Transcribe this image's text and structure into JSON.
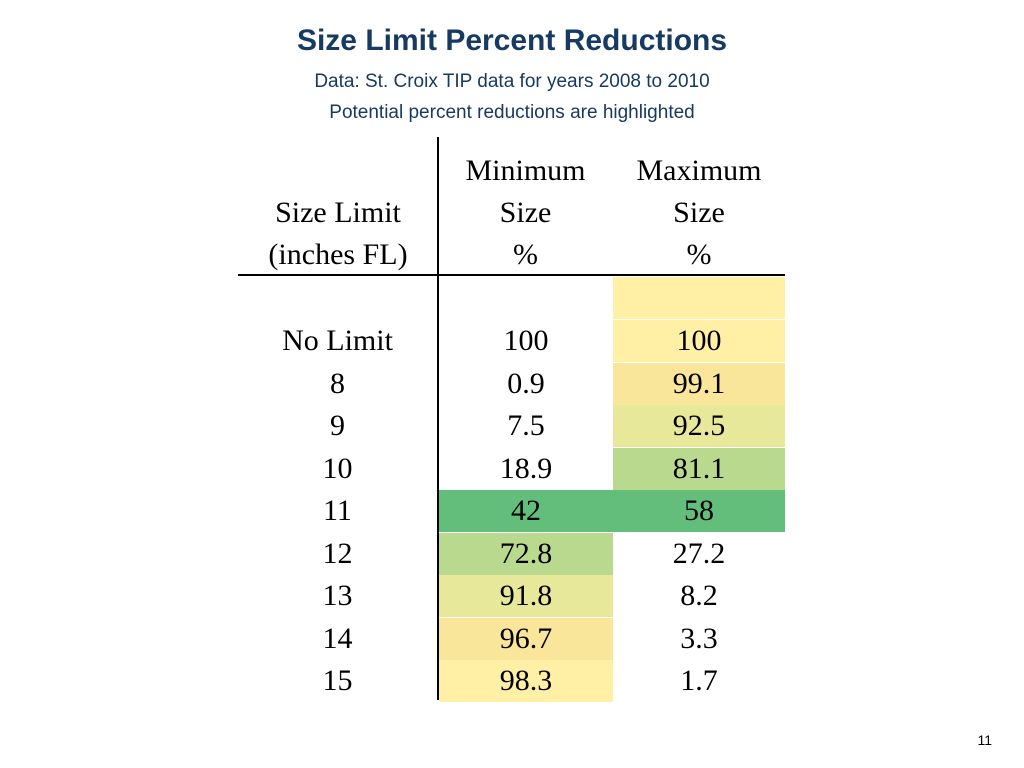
{
  "title": "Size Limit Percent Reductions",
  "subtitle1": "Data: St. Croix TIP data for years 2008 to 2010",
  "subtitle2": "Potential percent reductions are highlighted",
  "headers": {
    "size_line1": "Size Limit",
    "size_line2": "(inches FL)",
    "min_line1": "Minimum",
    "min_line2": "Size",
    "min_line3": "%",
    "max_line1": "Maximum",
    "max_line2": "Size",
    "max_line3": "%"
  },
  "highlight_colors": {
    "light_yellow": "#fff0a6",
    "yellow": "#fae69b",
    "yellow_green": "#e8e89a",
    "light_green": "#b9d98e",
    "green": "#63be7b"
  },
  "rows": [
    {
      "size": "No Limit",
      "min": "100",
      "max": "100",
      "min_color": "",
      "max_color": "#fff0a6"
    },
    {
      "size": "8",
      "min": "0.9",
      "max": "99.1",
      "min_color": "",
      "max_color": "#fae69b"
    },
    {
      "size": "9",
      "min": "7.5",
      "max": "92.5",
      "min_color": "",
      "max_color": "#e8e89a"
    },
    {
      "size": "10",
      "min": "18.9",
      "max": "81.1",
      "min_color": "",
      "max_color": "#b9d98e"
    },
    {
      "size": "11",
      "min": "42",
      "max": "58",
      "min_color": "#63be7b",
      "max_color": "#63be7b"
    },
    {
      "size": "12",
      "min": "72.8",
      "max": "27.2",
      "min_color": "#b9d98e",
      "max_color": ""
    },
    {
      "size": "13",
      "min": "91.8",
      "max": "8.2",
      "min_color": "#e8e89a",
      "max_color": ""
    },
    {
      "size": "14",
      "min": "96.7",
      "max": "3.3",
      "min_color": "#fae69b",
      "max_color": ""
    },
    {
      "size": "15",
      "min": "98.3",
      "max": "1.7",
      "min_color": "#fff0a6",
      "max_color": ""
    }
  ],
  "page_number": "11"
}
